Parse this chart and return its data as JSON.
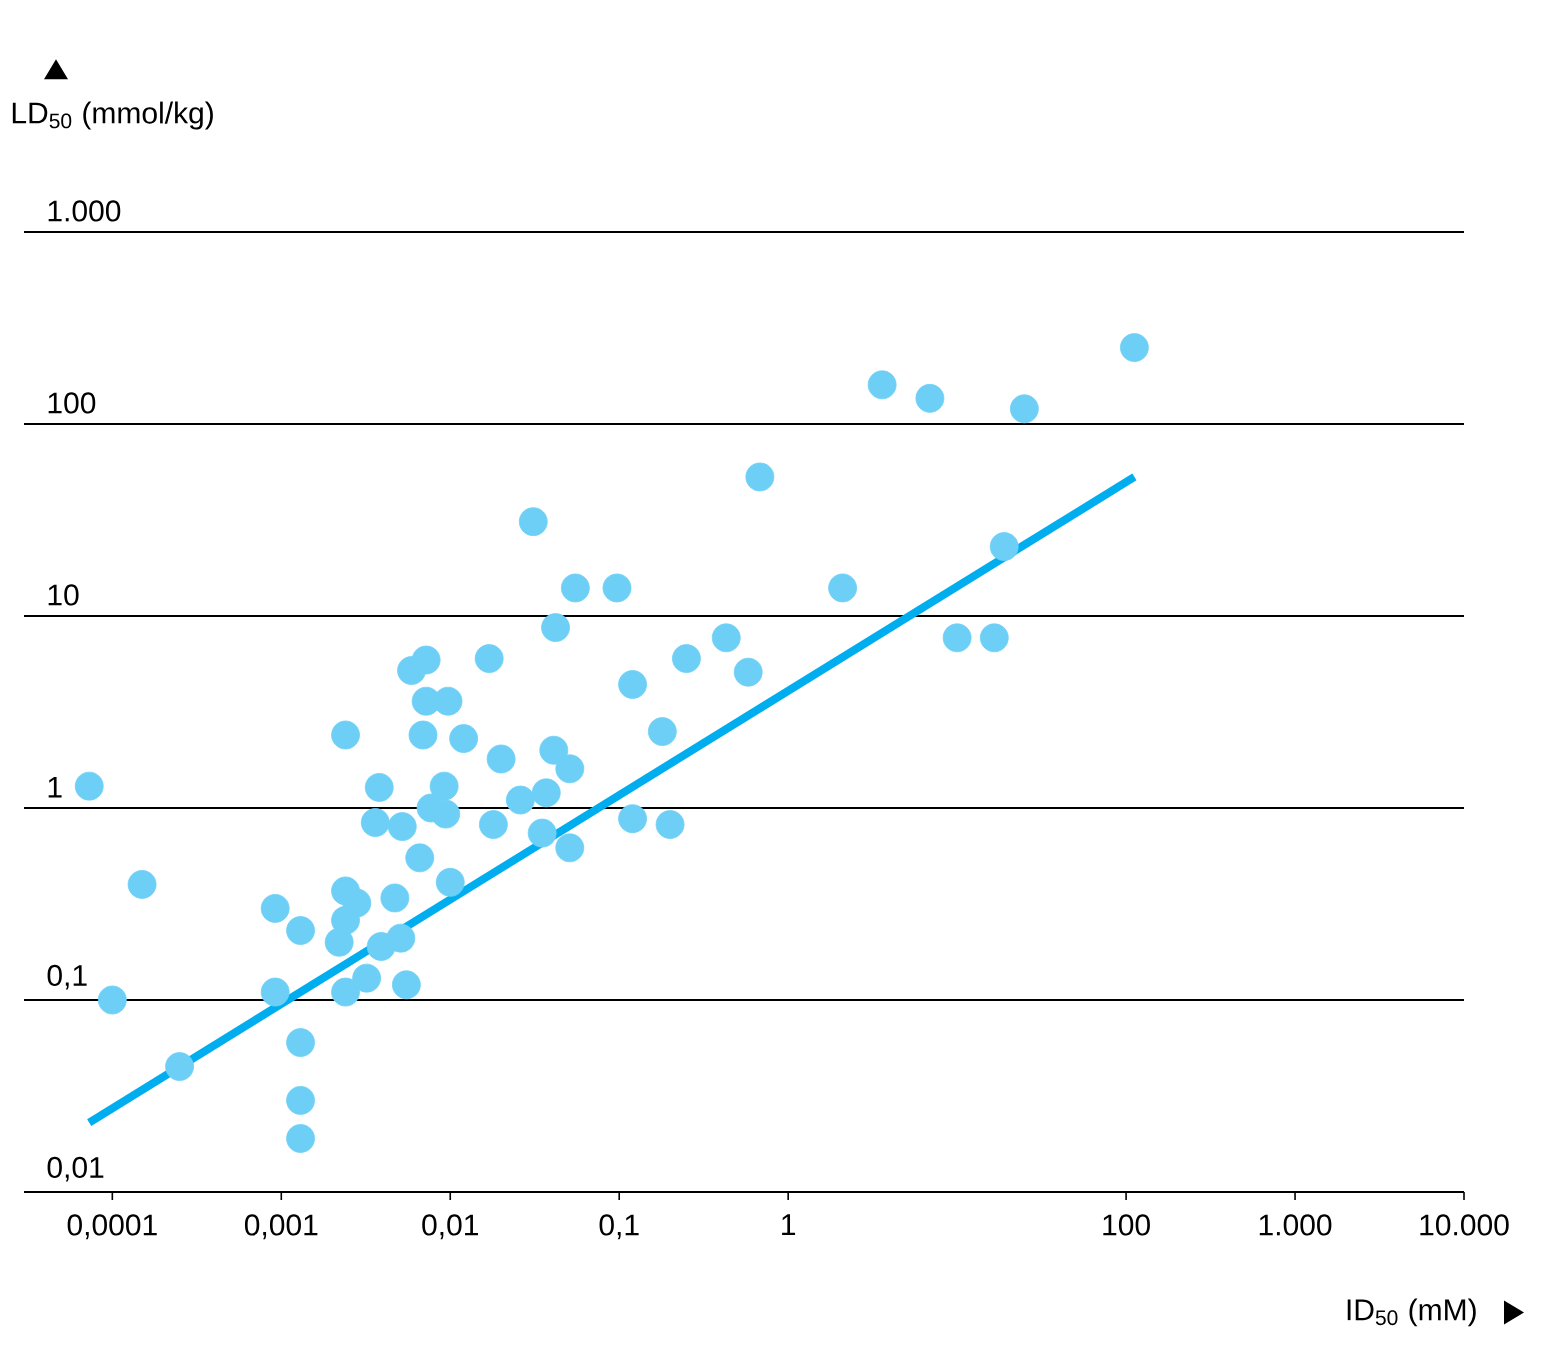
{
  "chart_data": {
    "type": "scatter",
    "xlabel": "ID$_{50}$ (mM)",
    "ylabel": "LD$_{50}$ (mmol/kg)",
    "log": "xy",
    "grid": "y",
    "xlim": [
      3e-05,
      10000
    ],
    "ylim": [
      0.01,
      1000
    ],
    "xticks": [
      {
        "value": 0.0001,
        "label": "0,0001"
      },
      {
        "value": 0.001,
        "label": "0,001"
      },
      {
        "value": 0.01,
        "label": "0,01"
      },
      {
        "value": 0.1,
        "label": "0,1"
      },
      1,
      100,
      {
        "value": 1000,
        "label": "1.000"
      },
      {
        "value": 10000,
        "label": "10.000"
      }
    ],
    "yticks": [
      {
        "value": 0.01,
        "label": "0,01"
      },
      {
        "value": 0.1,
        "label": "0,1"
      },
      1,
      10,
      100,
      {
        "value": 1000,
        "label": "1.000"
      }
    ],
    "series": [
      {
        "marker": "circle",
        "color": "#6dcff6",
        "x": [
          7.3e-05,
          0.0001,
          0.00015,
          0.00025,
          0.00092,
          0.00092,
          0.0013,
          0.0013,
          0.0013,
          0.0013,
          0.0024,
          0.0024,
          0.0028,
          0.0024,
          0.0022,
          0.0024,
          0.0032,
          0.0039,
          0.0047,
          0.0051,
          0.0055,
          0.0066,
          0.0052,
          0.0036,
          0.0038,
          0.0059,
          0.0072,
          0.0072,
          0.0069,
          0.0097,
          0.012,
          0.0092,
          0.0077,
          0.0094,
          0.01,
          0.031,
          0.055,
          0.097,
          0.042,
          0.017,
          0.12,
          0.25,
          0.43,
          0.58,
          2.1,
          0.68,
          10,
          16.6,
          19,
          3.6,
          6.9,
          25,
          112,
          0.18,
          0.02,
          0.041,
          0.051,
          0.026,
          0.037,
          0.018,
          0.035,
          0.051,
          0.12,
          0.2
        ],
        "values": [
          1.3,
          0.1,
          0.4,
          0.045,
          0.3,
          0.11,
          0.23,
          0.06,
          0.03,
          0.019,
          2.4,
          0.37,
          0.32,
          0.26,
          0.2,
          0.11,
          0.13,
          0.19,
          0.34,
          0.21,
          0.12,
          0.55,
          0.8,
          0.84,
          1.28,
          5.2,
          5.9,
          3.6,
          2.4,
          3.6,
          2.3,
          1.3,
          1.0,
          0.93,
          0.41,
          31,
          14,
          14,
          8.7,
          6.0,
          4.4,
          6.0,
          7.7,
          5.1,
          14,
          53,
          7.7,
          7.7,
          23,
          160,
          136,
          120,
          250,
          2.5,
          1.8,
          2.0,
          1.6,
          1.1,
          1.2,
          0.82,
          0.74,
          0.62,
          0.88,
          0.82
        ]
      },
      {
        "type": "line",
        "color": "#00aeef",
        "x": [
          7.3e-05,
          112
        ],
        "values": [
          0.023,
          53
        ]
      }
    ]
  }
}
